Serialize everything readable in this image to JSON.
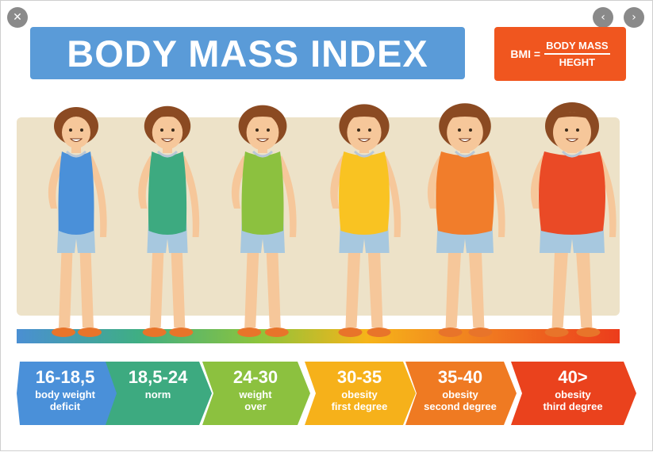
{
  "viewer": {
    "close_icon": "close-icon",
    "prev_icon": "chevron-left-icon",
    "next_icon": "chevron-right-icon",
    "close_glyph": "✕",
    "prev_glyph": "‹",
    "next_glyph": "›"
  },
  "title": "BODY MASS INDEX",
  "formula": {
    "lhs": "BMI =",
    "numerator": "BODY MASS",
    "denominator": "HEGHT"
  },
  "categories": [
    {
      "range": "16-18,5",
      "line1": "body weight",
      "line2": "deficit",
      "color": "#4a90d9"
    },
    {
      "range": "18,5-24",
      "line1": "norm",
      "line2": "",
      "color": "#3daa80"
    },
    {
      "range": "24-30",
      "line1": "weight",
      "line2": "over",
      "color": "#8cc13f"
    },
    {
      "range": "30-35",
      "line1": "obesity",
      "line2": "first degree",
      "color": "#f6b11a"
    },
    {
      "range": "35-40",
      "line1": "obesity",
      "line2": "second degree",
      "color": "#ef7a22"
    },
    {
      "range": "40>",
      "line1": "obesity",
      "line2": "third degree",
      "color": "#ea421d"
    }
  ],
  "figures": [
    {
      "shirt": "#4a90d9",
      "stripe": "#b9c7d6"
    },
    {
      "shirt": "#3daa80",
      "stripe": "#b9c7d6"
    },
    {
      "shirt": "#8cc13f",
      "stripe": "#b9c7d6"
    },
    {
      "shirt": "#f9c322",
      "stripe": "#b9c7d6"
    },
    {
      "shirt": "#f17d2b",
      "stripe": "#b9c7d6"
    },
    {
      "shirt": "#ea4a26",
      "stripe": "#b9c7d6"
    }
  ],
  "colors": {
    "title_bg": "#5a9bd8",
    "formula_bg": "#f0561f",
    "panel_bg": "#ede2c8",
    "skin": "#f6c79a",
    "hair": "#8b4a22",
    "shorts": "#a7c8df",
    "shoe": "#e8742a"
  }
}
